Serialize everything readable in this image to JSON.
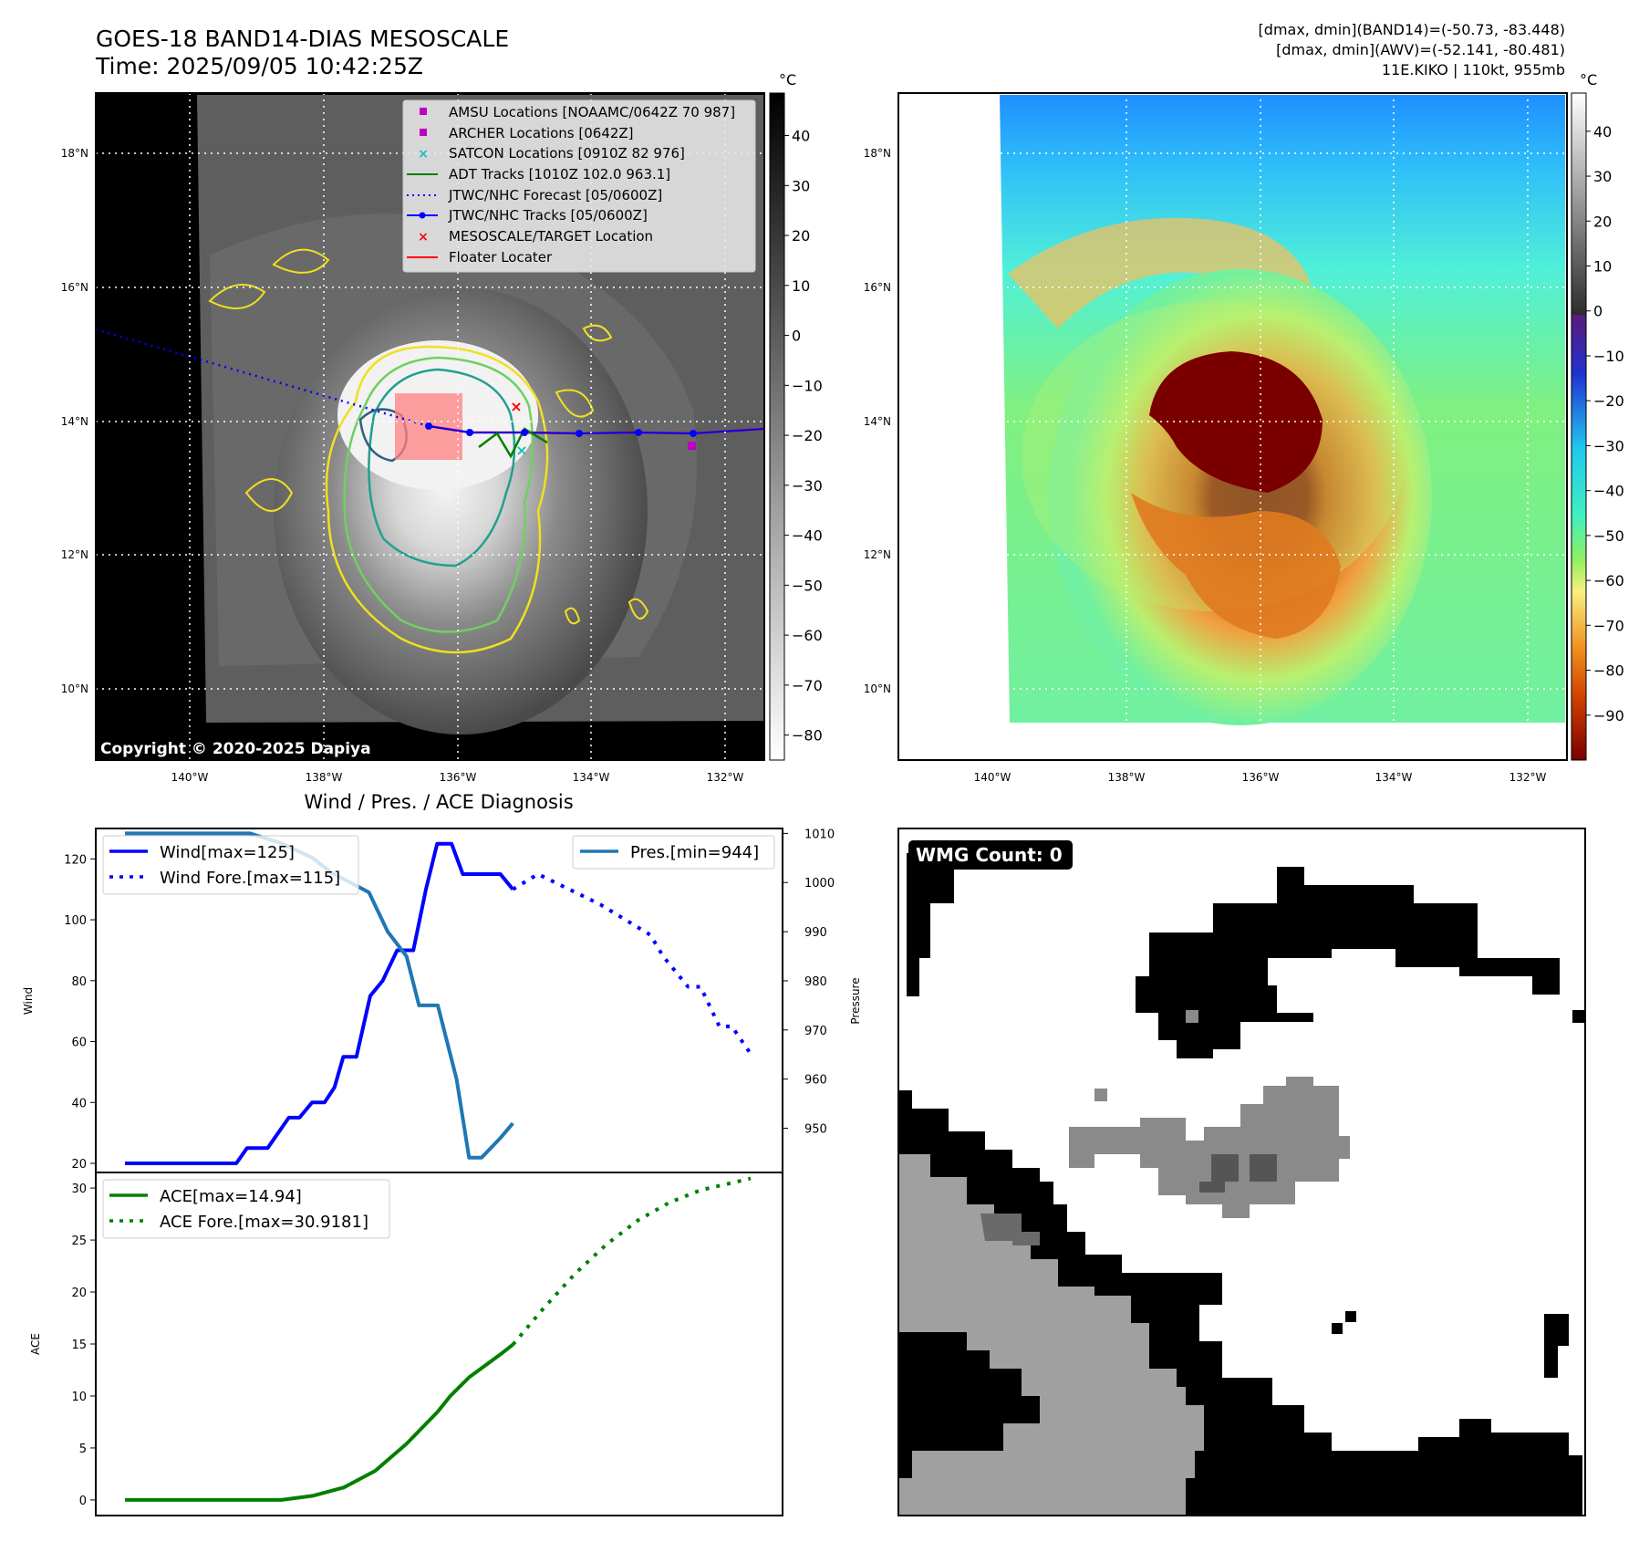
{
  "header": {
    "title": "GOES-18 BAND14-DIAS MESOSCALE",
    "time": "Time: 2025/09/05 10:42:25Z",
    "stat_band14": "[dmax, dmin](BAND14)=(-50.73, -83.448)",
    "stat_awv": "[dmax, dmin](AWV)=(-52.141, -80.481)",
    "storm": "11E.KIKO | 110kt, 955mb"
  },
  "map": {
    "lat_labels": [
      "18°N",
      "16°N",
      "14°N",
      "12°N",
      "10°N"
    ],
    "lon_labels": [
      "140°W",
      "138°W",
      "136°W",
      "134°W",
      "132°W"
    ],
    "copyright": "Copyright © 2020-2025 Dapiya",
    "legend": [
      {
        "label": "AMSU Locations [NOAAMC/0642Z 70 987]",
        "marker": "square",
        "color": "#c000c0"
      },
      {
        "label": "ARCHER Locations [0642Z]",
        "marker": "square",
        "color": "#c000c0"
      },
      {
        "label": "SATCON Locations [0910Z 82 976]",
        "marker": "x",
        "color": "#17bfbf"
      },
      {
        "label": "ADT Tracks [1010Z 102.0 963.1]",
        "marker": "line",
        "color": "#008000"
      },
      {
        "label": "JTWC/NHC Forecast [05/0600Z]",
        "marker": "dotted",
        "color": "#0000ff"
      },
      {
        "label": "JTWC/NHC Tracks [05/0600Z]",
        "marker": "line-dot",
        "color": "#0000ff"
      },
      {
        "label": "MESOSCALE/TARGET Location",
        "marker": "x",
        "color": "#ff0000"
      },
      {
        "label": "Floater Locater",
        "marker": "line",
        "color": "#ff0000"
      }
    ]
  },
  "colorbars": {
    "unit": "°C",
    "gray_ticks": [
      "40",
      "30",
      "20",
      "10",
      "0",
      "−10",
      "−20",
      "−30",
      "−40",
      "−50",
      "−60",
      "−70",
      "−80"
    ],
    "color_ticks": [
      "40",
      "30",
      "20",
      "10",
      "0",
      "−10",
      "−20",
      "−30",
      "−40",
      "−50",
      "−60",
      "−70",
      "−80",
      "−90"
    ]
  },
  "wmg": {
    "label": "WMG Count: 0"
  },
  "chart_data": [
    {
      "type": "line",
      "title": "Wind / Pres. / ACE Diagnosis",
      "ylabel": "Wind",
      "y2label": "Pressure",
      "ylim": [
        17,
        130
      ],
      "y2lim": [
        941,
        1011
      ],
      "xlim": [
        0,
        1
      ],
      "yticks": [
        "20",
        "40",
        "60",
        "80",
        "100",
        "120"
      ],
      "y2ticks": [
        "950",
        "960",
        "970",
        "980",
        "990",
        "1000",
        "1010"
      ],
      "legend_left": [
        "Wind[max=125]",
        "Wind Fore.[max=115]"
      ],
      "legend_right": [
        "Pres.[min=944]"
      ],
      "series": [
        {
          "name": "Wind[max=125]",
          "axis": "left",
          "style": "solid",
          "color": "#0000ff",
          "x": [
            0.0,
            0.178,
            0.195,
            0.228,
            0.262,
            0.279,
            0.299,
            0.319,
            0.335,
            0.349,
            0.37,
            0.392,
            0.412,
            0.435,
            0.461,
            0.481,
            0.499,
            0.522,
            0.54,
            0.56,
            0.6,
            0.62
          ],
          "y": [
            20,
            20,
            25,
            25,
            35,
            35,
            40,
            40,
            45,
            55,
            55,
            75,
            80,
            90,
            90,
            110,
            125,
            125,
            115,
            115,
            115,
            110
          ]
        },
        {
          "name": "Wind Fore.[max=115]",
          "axis": "left",
          "style": "dotted",
          "color": "#0000ff",
          "x": [
            0.62,
            0.66,
            0.71,
            0.76,
            0.8,
            0.84,
            0.86,
            0.9,
            0.92,
            0.95,
            0.97,
            1.0
          ],
          "y": [
            110,
            115,
            110,
            105,
            100,
            95,
            88,
            78,
            78,
            65,
            65,
            56
          ]
        },
        {
          "name": "Pres.[min=944]",
          "axis": "right",
          "style": "solid",
          "color": "#1f77b4",
          "x": [
            0.0,
            0.2,
            0.25,
            0.3,
            0.33,
            0.36,
            0.39,
            0.42,
            0.45,
            0.47,
            0.5,
            0.53,
            0.55,
            0.57,
            0.6,
            0.62
          ],
          "y": [
            1010,
            1010,
            1008,
            1005,
            1002,
            1000,
            998,
            990,
            985,
            975,
            975,
            960,
            944,
            944,
            948,
            951
          ]
        }
      ]
    },
    {
      "type": "line",
      "ylabel": "ACE",
      "ylim": [
        -1.5,
        31.5
      ],
      "xlim": [
        0,
        1
      ],
      "yticks": [
        "0",
        "5",
        "10",
        "15",
        "20",
        "25",
        "30"
      ],
      "legend": [
        "ACE[max=14.94]",
        "ACE Fore.[max=30.9181]"
      ],
      "series": [
        {
          "name": "ACE[max=14.94]",
          "style": "solid",
          "color": "#008000",
          "x": [
            0.0,
            0.25,
            0.3,
            0.35,
            0.4,
            0.45,
            0.5,
            0.52,
            0.55,
            0.6,
            0.62
          ],
          "y": [
            0,
            0,
            0.4,
            1.2,
            2.8,
            5.4,
            8.5,
            10.0,
            11.8,
            14.0,
            14.94
          ]
        },
        {
          "name": "ACE Fore.[max=30.9181]",
          "style": "dotted",
          "color": "#008000",
          "x": [
            0.62,
            0.67,
            0.72,
            0.77,
            0.82,
            0.87,
            0.92,
            0.97,
            1.0
          ],
          "y": [
            14.94,
            18.5,
            21.8,
            24.6,
            26.9,
            28.6,
            29.8,
            30.5,
            30.92
          ]
        }
      ]
    }
  ]
}
